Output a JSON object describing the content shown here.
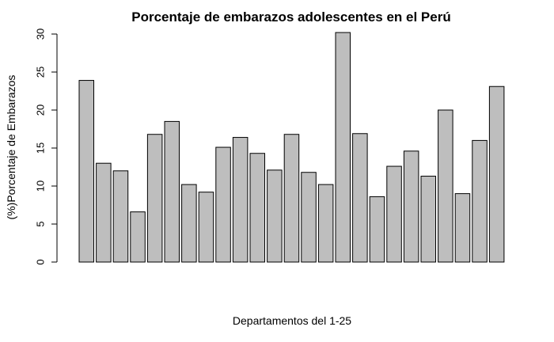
{
  "chart_data": {
    "type": "bar",
    "title": "Porcentaje de embarazos adolescentes en el Perú",
    "xlabel": "Departamentos del 1-25",
    "ylabel": "(%)Porcentaje de Embarazos",
    "ylim": [
      0,
      30
    ],
    "yticks": [
      "0",
      "5",
      "10",
      "15",
      "20",
      "25",
      "30"
    ],
    "grid": false,
    "bar_color": "#bebebe",
    "values": [
      23.9,
      13.0,
      12.0,
      6.6,
      16.8,
      18.5,
      10.2,
      9.2,
      15.1,
      16.4,
      14.3,
      12.1,
      16.8,
      11.8,
      10.2,
      30.2,
      16.9,
      8.6,
      12.6,
      14.6,
      11.3,
      20.0,
      9.0,
      16.0,
      23.1
    ]
  }
}
